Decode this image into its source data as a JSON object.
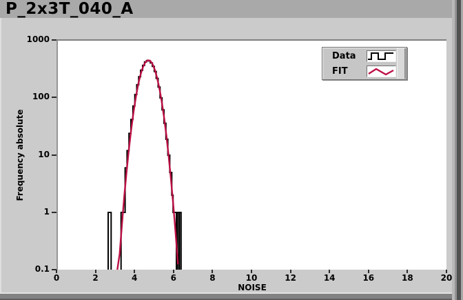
{
  "window": {
    "title": "P_2x3T_040_A"
  },
  "chart": {
    "xlabel": "NOISE",
    "ylabel": "Frequency absolute",
    "x_ticks": [
      "0",
      "2",
      "4",
      "6",
      "8",
      "10",
      "12",
      "14",
      "16",
      "18",
      "20"
    ],
    "y_ticks": [
      "1000",
      "100",
      "10",
      "1",
      "0.1"
    ]
  },
  "legend": {
    "items": [
      {
        "label": "Data",
        "icon": "step-line-icon"
      },
      {
        "label": "FIT",
        "icon": "zigzag-line-icon"
      }
    ]
  },
  "colors": {
    "panel": "#cbcbcb",
    "titlebar": "#a9a9a9",
    "plot_background": "#ffffff",
    "data_series": "#000000",
    "fit_series": "#bb0f44"
  },
  "chart_data": {
    "type": "bar",
    "subtype": "histogram-with-fit",
    "title": "P_2x3T_040_A",
    "xlabel": "NOISE",
    "ylabel": "Frequency absolute",
    "xlim": [
      0,
      20
    ],
    "ylim": [
      0.1,
      1000
    ],
    "y_scale": "log10",
    "grid": false,
    "legend_position": "top-right-inside",
    "series": [
      {
        "name": "Data",
        "type": "step-histogram",
        "color": "#000000",
        "bins": [
          [
            2.59,
            2.74,
            1
          ],
          [
            3.25,
            3.46,
            1
          ],
          [
            3.46,
            3.56,
            6
          ],
          [
            3.56,
            3.66,
            12
          ],
          [
            3.66,
            3.76,
            24
          ],
          [
            3.76,
            3.86,
            42
          ],
          [
            3.86,
            3.96,
            72
          ],
          [
            3.96,
            4.06,
            115
          ],
          [
            4.06,
            4.16,
            170
          ],
          [
            4.16,
            4.26,
            235
          ],
          [
            4.26,
            4.36,
            305
          ],
          [
            4.36,
            4.46,
            370
          ],
          [
            4.46,
            4.56,
            425
          ],
          [
            4.56,
            4.66,
            448
          ],
          [
            4.66,
            4.76,
            442
          ],
          [
            4.76,
            4.86,
            408
          ],
          [
            4.86,
            4.96,
            355
          ],
          [
            4.96,
            5.06,
            290
          ],
          [
            5.06,
            5.16,
            220
          ],
          [
            5.16,
            5.26,
            155
          ],
          [
            5.26,
            5.36,
            100
          ],
          [
            5.36,
            5.46,
            62
          ],
          [
            5.46,
            5.56,
            36
          ],
          [
            5.56,
            5.66,
            19
          ],
          [
            5.66,
            5.76,
            10
          ],
          [
            5.76,
            5.86,
            5
          ],
          [
            5.86,
            5.93,
            2
          ],
          [
            5.93,
            6.1,
            1
          ],
          [
            6.14,
            6.22,
            1
          ],
          [
            6.26,
            6.34,
            1
          ]
        ]
      },
      {
        "name": "FIT",
        "type": "gaussian-fit-line",
        "color": "#bb0f44",
        "gaussian": {
          "amplitude": 458,
          "mean": 4.66,
          "sigma": 0.375
        },
        "x_start": 3.06,
        "x_end": 6.26,
        "sample_step": 0.12
      }
    ]
  }
}
